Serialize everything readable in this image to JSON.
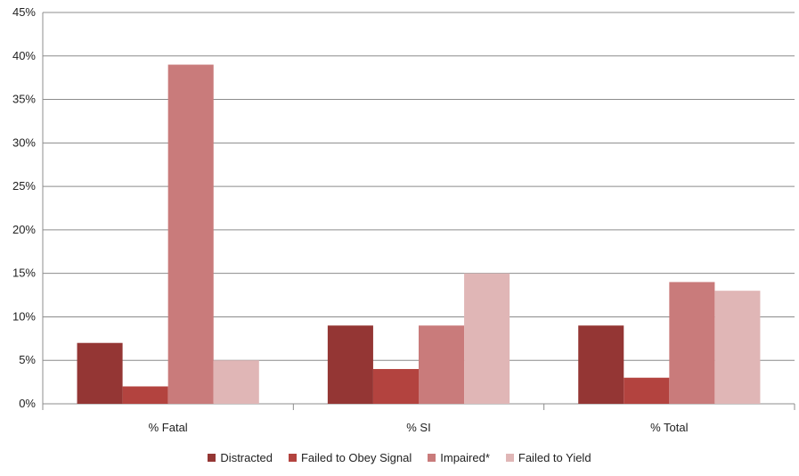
{
  "chart_data": {
    "type": "bar",
    "categories": [
      "% Fatal",
      "% SI",
      "% Total"
    ],
    "series": [
      {
        "name": "Distracted",
        "values": [
          7,
          9,
          9
        ],
        "color": "#943634"
      },
      {
        "name": "Failed to Obey Signal",
        "values": [
          2,
          4,
          3
        ],
        "color": "#b3433f"
      },
      {
        "name": "Impaired*",
        "values": [
          39,
          9,
          14
        ],
        "color": "#c97b7b"
      },
      {
        "name": "Failed to Yield",
        "values": [
          5,
          15,
          13
        ],
        "color": "#e0b6b6"
      }
    ],
    "yticks": [
      "0%",
      "5%",
      "10%",
      "15%",
      "20%",
      "25%",
      "30%",
      "35%",
      "40%",
      "45%"
    ],
    "ylim": [
      0,
      45
    ],
    "grid": true,
    "legend_position": "bottom",
    "title": "",
    "xlabel": "",
    "ylabel": ""
  }
}
